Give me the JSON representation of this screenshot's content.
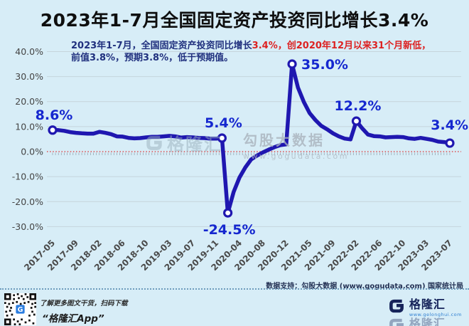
{
  "title": "2023年1-7月全国固定资产投资同比增长3.4%",
  "subtitle": {
    "lead": "2023年1-7月，全国固定资产投资同比增长",
    "highlight": "3.4%，创2020年12月以来31个月新低，",
    "line2": "前值3.8%，预期3.8%，低于预期值。"
  },
  "chart_data": {
    "type": "line",
    "title": "2023年1-7月全国固定资产投资同比增长3.4%",
    "x": [
      "2017-05",
      "2017-06",
      "2017-07",
      "2017-08",
      "2017-09",
      "2017-10",
      "2017-11",
      "2017-12",
      "2018-02",
      "2018-03",
      "2018-04",
      "2018-05",
      "2018-06",
      "2018-07",
      "2018-08",
      "2018-09",
      "2018-10",
      "2018-11",
      "2018-12",
      "2019-02",
      "2019-03",
      "2019-04",
      "2019-05",
      "2019-06",
      "2019-07",
      "2019-08",
      "2019-09",
      "2019-10",
      "2019-11",
      "2019-12",
      "2020-02",
      "2020-03",
      "2020-04",
      "2020-05",
      "2020-06",
      "2020-07",
      "2020-08",
      "2020-09",
      "2020-10",
      "2020-11",
      "2020-12",
      "2021-02",
      "2021-03",
      "2021-04",
      "2021-05",
      "2021-06",
      "2021-07",
      "2021-08",
      "2021-09",
      "2021-10",
      "2021-11",
      "2021-12",
      "2022-02",
      "2022-03",
      "2022-04",
      "2022-05",
      "2022-06",
      "2022-07",
      "2022-08",
      "2022-09",
      "2022-10",
      "2022-11",
      "2022-12",
      "2023-02",
      "2023-03",
      "2023-04",
      "2023-05",
      "2023-06",
      "2023-07"
    ],
    "values": [
      8.6,
      8.6,
      8.3,
      7.8,
      7.5,
      7.3,
      7.2,
      7.2,
      7.9,
      7.5,
      7.0,
      6.1,
      6.0,
      5.5,
      5.3,
      5.4,
      5.7,
      5.9,
      5.9,
      6.1,
      6.3,
      6.1,
      5.6,
      5.8,
      5.7,
      5.5,
      5.4,
      5.2,
      5.2,
      5.4,
      -24.5,
      -16.1,
      -10.3,
      -6.3,
      -3.1,
      -1.6,
      -0.3,
      0.8,
      1.8,
      2.6,
      2.9,
      35.0,
      25.6,
      19.9,
      15.4,
      12.6,
      10.3,
      8.9,
      7.3,
      6.1,
      5.2,
      4.9,
      12.2,
      9.3,
      6.8,
      6.2,
      6.1,
      5.7,
      5.8,
      5.9,
      5.8,
      5.3,
      5.1,
      5.5,
      5.1,
      4.7,
      4.0,
      3.8,
      3.4
    ],
    "ylim": [
      -30,
      40
    ],
    "grid": true,
    "zero_line": "red-dotted",
    "y_tick_labels": [
      "40.0%",
      "30.0%",
      "20.0%",
      "10.0%",
      "0.0%",
      "-10.0%",
      "-20.0%",
      "-30.0%"
    ],
    "x_tick_labels": [
      "2017-05",
      "2017-09",
      "2018-02",
      "2018-06",
      "2018-10",
      "2019-03",
      "2019-07",
      "2019-11",
      "2020-04",
      "2020-08",
      "2020-12",
      "2021-05",
      "2021-09",
      "2022-02",
      "2022-06",
      "2022-10",
      "2023-03",
      "2023-07"
    ],
    "x_tick_every": 4,
    "annotations": [
      {
        "text": "8.6%",
        "index": 0,
        "pos": "above"
      },
      {
        "text": "5.4%",
        "index": 29,
        "pos": "above"
      },
      {
        "text": "-24.5%",
        "index": 30,
        "pos": "below"
      },
      {
        "text": "35.0%",
        "index": 41,
        "pos": "right"
      },
      {
        "text": "12.2%",
        "index": 52,
        "pos": "above"
      },
      {
        "text": "3.4%",
        "index": 68,
        "pos": "above-right"
      }
    ],
    "colors": {
      "background": "#d7edf7",
      "line": "#1f17b0",
      "annotation": "#1527cf",
      "zero_line": "#e03030",
      "grid": "#c5d4dc",
      "tick_text": "#4a4a4a"
    }
  },
  "watermarks": {
    "gelonghui": "格隆汇",
    "gogu": "勾股大数据",
    "gogu_url": "www.gogudata.com"
  },
  "footer": {
    "data_support": "数据支持：勾股大数据 (www.gogudata.com) 国家统计局",
    "qr_caption_line1": "了解更多图文干货，扫码下载",
    "qr_caption_line2": "“格隆汇App”",
    "logo_text": "格隆汇",
    "logo_url": "www.gelonghui.com"
  }
}
